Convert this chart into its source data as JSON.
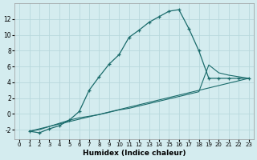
{
  "xlabel": "Humidex (Indice chaleur)",
  "bg_color": "#d4ecef",
  "grid_color": "#b8d8dc",
  "line_color": "#1a6b6b",
  "xlim": [
    -0.5,
    23.5
  ],
  "ylim": [
    -3.2,
    14
  ],
  "yticks": [
    -2,
    0,
    2,
    4,
    6,
    8,
    10,
    12
  ],
  "xticks": [
    0,
    1,
    2,
    3,
    4,
    5,
    6,
    7,
    8,
    9,
    10,
    11,
    12,
    13,
    14,
    15,
    16,
    17,
    18,
    19,
    20,
    21,
    22,
    23
  ],
  "line1_x": [
    1,
    2,
    3,
    4,
    5,
    6,
    7,
    8,
    9,
    10,
    11,
    12,
    13,
    14,
    15,
    16,
    17,
    18,
    19,
    20,
    21,
    22,
    23
  ],
  "line1_y": [
    -2.2,
    -2.4,
    -1.9,
    -1.5,
    -0.8,
    0.3,
    3.0,
    4.7,
    6.3,
    7.5,
    9.7,
    10.6,
    11.6,
    12.3,
    13.0,
    13.2,
    10.8,
    8.0,
    4.5,
    4.5,
    4.5,
    4.5,
    4.5
  ],
  "line2_x": [
    1,
    23
  ],
  "line2_y": [
    -2.2,
    4.5
  ],
  "line3_x": [
    1,
    2,
    3,
    4,
    5,
    6,
    7,
    8,
    9,
    10,
    11,
    12,
    13,
    14,
    15,
    16,
    17,
    18,
    19,
    20,
    21,
    22,
    23
  ],
  "line3_y": [
    -2.2,
    -2.0,
    -1.6,
    -1.2,
    -0.8,
    -0.5,
    -0.3,
    -0.1,
    0.2,
    0.5,
    0.7,
    1.0,
    1.3,
    1.6,
    1.9,
    2.2,
    2.5,
    2.8,
    6.2,
    5.2,
    4.9,
    4.7,
    4.5
  ]
}
